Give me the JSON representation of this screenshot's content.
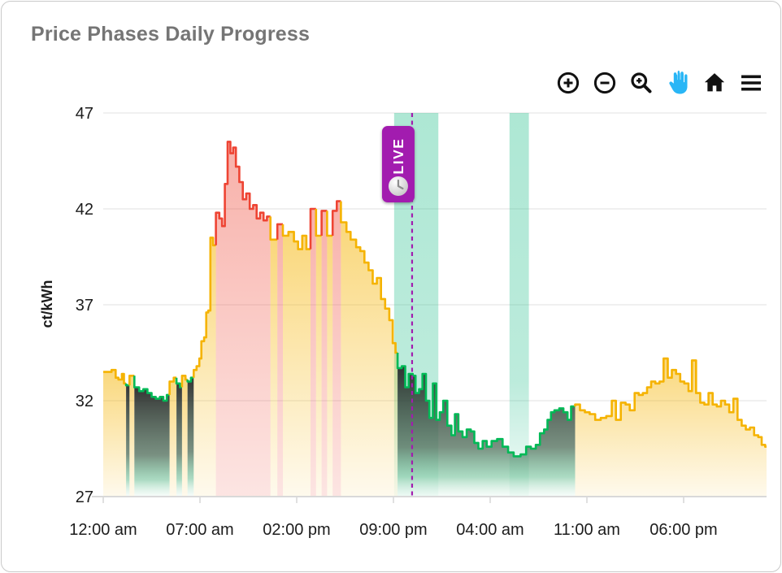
{
  "card": {
    "title": "Price Phases Daily Progress"
  },
  "toolbar": {
    "icons": [
      {
        "name": "zoom-in-icon",
        "action": "zoom in"
      },
      {
        "name": "zoom-out-icon",
        "action": "zoom out"
      },
      {
        "name": "box-zoom-icon",
        "action": "zoom selection"
      },
      {
        "name": "pan-icon",
        "action": "pan",
        "active": true
      },
      {
        "name": "home-icon",
        "action": "reset view"
      },
      {
        "name": "menu-icon",
        "action": "menu"
      }
    ]
  },
  "live_badge": {
    "label": "LIVE",
    "icon": "clock-icon"
  },
  "colors": {
    "yellow": "#f5b301",
    "red": "#ee4433",
    "green": "#00b956",
    "band_green": "#10b981",
    "purple": "#a21caf",
    "title_text": "#757575",
    "axis_text": "#1c1c1c",
    "grid": "#ececec",
    "axis_line": "#d9d9d9",
    "pan_active_blue": "#29b6f6",
    "icon_black": "#111111"
  },
  "chart_data": {
    "type": "area",
    "subtype": "step-line with price phases (yellow=normal, red=expensive, green=cheap)",
    "ylabel": "ct/kWh",
    "xlabel": "",
    "ylim": [
      27,
      47
    ],
    "y_ticks": [
      47,
      42,
      37,
      32,
      27
    ],
    "xlim_hours": [
      0,
      48
    ],
    "x_ticks": [
      {
        "t": 0,
        "label": "12:00 am"
      },
      {
        "t": 7,
        "label": "07:00 am"
      },
      {
        "t": 14,
        "label": "02:00 pm"
      },
      {
        "t": 21,
        "label": "09:00 pm"
      },
      {
        "t": 28,
        "label": "04:00 am"
      },
      {
        "t": 35,
        "label": "11:00 am"
      },
      {
        "t": 42,
        "label": "06:00 pm"
      }
    ],
    "live_t": 22.35,
    "cheap_bands_t": [
      [
        21.05,
        24.25
      ],
      [
        29.4,
        30.8
      ]
    ],
    "grid": true,
    "legend": false,
    "points": [
      [
        0,
        33.5,
        "y"
      ],
      [
        0.6,
        33.6,
        "y"
      ],
      [
        0.9,
        33.2,
        "y"
      ],
      [
        1.1,
        33.1,
        "y"
      ],
      [
        1.35,
        33.4,
        "y"
      ],
      [
        1.5,
        32.9,
        "y"
      ],
      [
        1.65,
        32.8,
        "g"
      ],
      [
        1.9,
        33.3,
        "y"
      ],
      [
        2.25,
        32.7,
        "g"
      ],
      [
        2.6,
        32.5,
        "g"
      ],
      [
        2.9,
        32.6,
        "g"
      ],
      [
        3.2,
        32.4,
        "g"
      ],
      [
        3.5,
        32.2,
        "g"
      ],
      [
        3.8,
        32.1,
        "g"
      ],
      [
        4.1,
        32.2,
        "g"
      ],
      [
        4.35,
        32.0,
        "g"
      ],
      [
        4.6,
        32.3,
        "g"
      ],
      [
        4.8,
        33.0,
        "y"
      ],
      [
        5.1,
        33.2,
        "y"
      ],
      [
        5.3,
        32.9,
        "g"
      ],
      [
        5.55,
        32.7,
        "g"
      ],
      [
        5.7,
        33.3,
        "y"
      ],
      [
        5.95,
        33.1,
        "y"
      ],
      [
        6.1,
        33.0,
        "g"
      ],
      [
        6.35,
        33.2,
        "g"
      ],
      [
        6.55,
        33.6,
        "y"
      ],
      [
        6.75,
        33.8,
        "y"
      ],
      [
        6.95,
        34.2,
        "y"
      ],
      [
        7.1,
        35.1,
        "y"
      ],
      [
        7.3,
        35.3,
        "y"
      ],
      [
        7.45,
        36.6,
        "y"
      ],
      [
        7.6,
        36.7,
        "y"
      ],
      [
        7.75,
        40.5,
        "y"
      ],
      [
        7.95,
        40.1,
        "y"
      ],
      [
        8.15,
        41.8,
        "r"
      ],
      [
        8.4,
        41.5,
        "r"
      ],
      [
        8.6,
        41.1,
        "r"
      ],
      [
        8.8,
        43.3,
        "r"
      ],
      [
        9.0,
        45.5,
        "r"
      ],
      [
        9.2,
        44.9,
        "r"
      ],
      [
        9.4,
        45.2,
        "r"
      ],
      [
        9.6,
        44.2,
        "r"
      ],
      [
        9.85,
        43.4,
        "r"
      ],
      [
        10.1,
        42.5,
        "r"
      ],
      [
        10.35,
        42.8,
        "r"
      ],
      [
        10.6,
        42.0,
        "r"
      ],
      [
        10.85,
        42.2,
        "r"
      ],
      [
        11.1,
        41.5,
        "r"
      ],
      [
        11.35,
        41.8,
        "r"
      ],
      [
        11.6,
        41.4,
        "r"
      ],
      [
        11.85,
        41.6,
        "r"
      ],
      [
        12.1,
        40.4,
        "y"
      ],
      [
        12.6,
        41.2,
        "r"
      ],
      [
        13.0,
        40.6,
        "y"
      ],
      [
        13.4,
        40.8,
        "y"
      ],
      [
        13.8,
        40.3,
        "y"
      ],
      [
        14.1,
        39.9,
        "y"
      ],
      [
        14.4,
        40.6,
        "y"
      ],
      [
        14.7,
        39.9,
        "y"
      ],
      [
        15.0,
        42.0,
        "r"
      ],
      [
        15.4,
        40.6,
        "y"
      ],
      [
        15.8,
        41.9,
        "r"
      ],
      [
        16.2,
        40.6,
        "y"
      ],
      [
        16.6,
        41.9,
        "r"
      ],
      [
        16.9,
        42.4,
        "r"
      ],
      [
        17.2,
        41.3,
        "y"
      ],
      [
        17.6,
        40.8,
        "y"
      ],
      [
        17.9,
        40.4,
        "y"
      ],
      [
        18.3,
        40.0,
        "y"
      ],
      [
        18.6,
        39.8,
        "y"
      ],
      [
        18.9,
        39.2,
        "y"
      ],
      [
        19.2,
        38.8,
        "y"
      ],
      [
        19.5,
        38.1,
        "y"
      ],
      [
        19.8,
        38.4,
        "y"
      ],
      [
        20.1,
        37.3,
        "y"
      ],
      [
        20.4,
        36.8,
        "y"
      ],
      [
        20.7,
        36.2,
        "y"
      ],
      [
        20.95,
        35.0,
        "y"
      ],
      [
        21.15,
        34.5,
        "y"
      ],
      [
        21.3,
        33.7,
        "g"
      ],
      [
        21.6,
        33.8,
        "g"
      ],
      [
        21.85,
        32.7,
        "g"
      ],
      [
        22.1,
        33.4,
        "g"
      ],
      [
        22.4,
        33.3,
        "g"
      ],
      [
        22.6,
        32.4,
        "g"
      ],
      [
        22.85,
        32.6,
        "g"
      ],
      [
        23.1,
        33.4,
        "g"
      ],
      [
        23.35,
        32.0,
        "g"
      ],
      [
        23.6,
        31.1,
        "g"
      ],
      [
        23.85,
        32.9,
        "g"
      ],
      [
        24.1,
        31.0,
        "g"
      ],
      [
        24.35,
        31.4,
        "g"
      ],
      [
        24.6,
        32.0,
        "g"
      ],
      [
        24.9,
        30.7,
        "g"
      ],
      [
        25.2,
        30.2,
        "g"
      ],
      [
        25.45,
        31.3,
        "g"
      ],
      [
        25.7,
        30.4,
        "g"
      ],
      [
        26.0,
        30.1,
        "g"
      ],
      [
        26.3,
        30.5,
        "g"
      ],
      [
        26.6,
        30.4,
        "g"
      ],
      [
        26.85,
        29.8,
        "g"
      ],
      [
        27.15,
        29.5,
        "g"
      ],
      [
        27.45,
        29.9,
        "g"
      ],
      [
        27.75,
        29.6,
        "g"
      ],
      [
        28.1,
        29.9,
        "g"
      ],
      [
        28.5,
        30.0,
        "g"
      ],
      [
        28.9,
        29.6,
        "g"
      ],
      [
        29.3,
        29.3,
        "g"
      ],
      [
        29.7,
        29.1,
        "g"
      ],
      [
        30.2,
        29.2,
        "g"
      ],
      [
        30.6,
        29.6,
        "g"
      ],
      [
        30.95,
        29.5,
        "g"
      ],
      [
        31.3,
        29.7,
        "g"
      ],
      [
        31.6,
        30.3,
        "g"
      ],
      [
        31.9,
        30.5,
        "g"
      ],
      [
        32.15,
        31.0,
        "g"
      ],
      [
        32.4,
        31.4,
        "g"
      ],
      [
        32.65,
        31.5,
        "g"
      ],
      [
        33.0,
        31.6,
        "g"
      ],
      [
        33.3,
        31.4,
        "g"
      ],
      [
        33.6,
        31.0,
        "g"
      ],
      [
        33.85,
        31.7,
        "g"
      ],
      [
        34.15,
        31.8,
        "y"
      ],
      [
        34.5,
        31.5,
        "y"
      ],
      [
        34.85,
        31.4,
        "y"
      ],
      [
        35.2,
        31.3,
        "y"
      ],
      [
        35.6,
        31.0,
        "y"
      ],
      [
        36.0,
        31.1,
        "y"
      ],
      [
        36.4,
        31.2,
        "y"
      ],
      [
        36.8,
        32.0,
        "y"
      ],
      [
        37.1,
        31.0,
        "y"
      ],
      [
        37.45,
        31.9,
        "y"
      ],
      [
        37.8,
        31.8,
        "y"
      ],
      [
        38.1,
        31.5,
        "y"
      ],
      [
        38.45,
        32.4,
        "y"
      ],
      [
        38.75,
        32.3,
        "y"
      ],
      [
        39.05,
        32.4,
        "y"
      ],
      [
        39.35,
        32.7,
        "y"
      ],
      [
        39.65,
        33.0,
        "y"
      ],
      [
        39.95,
        32.9,
        "y"
      ],
      [
        40.25,
        33.0,
        "y"
      ],
      [
        40.55,
        34.2,
        "y"
      ],
      [
        40.85,
        33.2,
        "y"
      ],
      [
        41.15,
        33.6,
        "y"
      ],
      [
        41.45,
        33.4,
        "y"
      ],
      [
        41.75,
        33.0,
        "y"
      ],
      [
        42.05,
        32.9,
        "y"
      ],
      [
        42.35,
        32.5,
        "y"
      ],
      [
        42.6,
        34.1,
        "y"
      ],
      [
        42.9,
        32.4,
        "y"
      ],
      [
        43.2,
        31.9,
        "y"
      ],
      [
        43.5,
        31.8,
        "y"
      ],
      [
        43.8,
        32.4,
        "y"
      ],
      [
        44.1,
        31.8,
        "y"
      ],
      [
        44.4,
        31.7,
        "y"
      ],
      [
        44.7,
        32.0,
        "y"
      ],
      [
        45.0,
        31.8,
        "y"
      ],
      [
        45.3,
        31.4,
        "y"
      ],
      [
        45.6,
        32.1,
        "y"
      ],
      [
        45.9,
        31.0,
        "y"
      ],
      [
        46.2,
        30.7,
        "y"
      ],
      [
        46.5,
        30.5,
        "y"
      ],
      [
        46.8,
        30.6,
        "y"
      ],
      [
        47.1,
        30.2,
        "y"
      ],
      [
        47.4,
        30.1,
        "y"
      ],
      [
        47.65,
        29.7,
        "y"
      ],
      [
        47.9,
        29.6,
        "y"
      ]
    ]
  }
}
